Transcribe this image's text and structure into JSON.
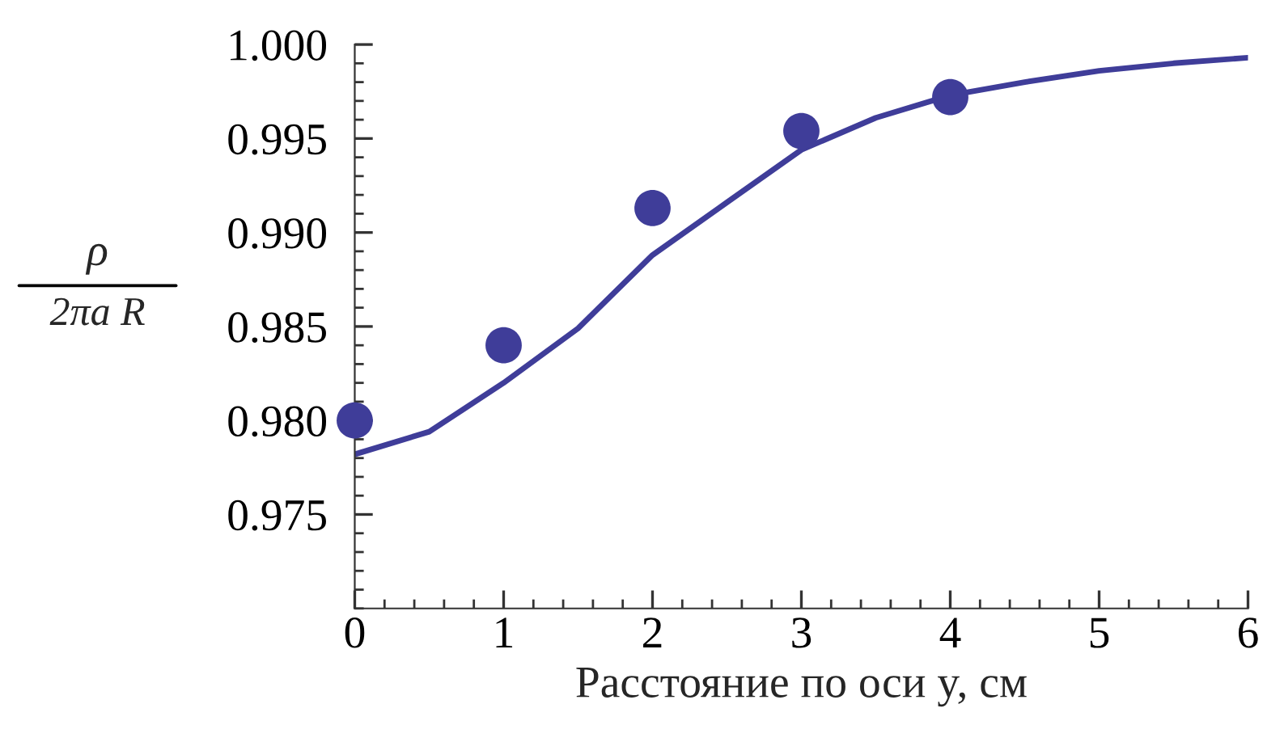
{
  "chart_data": {
    "type": "scatter",
    "xlabel": "Расстояние по оси y, см",
    "ylabel": "ρ\n2πa R",
    "series": [
      {
        "color": "#3f3d99",
        "marker": "circle",
        "x": [
          0,
          1,
          2,
          3,
          4
        ],
        "values": [
          0.98,
          0.984,
          0.9913,
          0.9954,
          0.9972
        ]
      },
      {
        "type": "line",
        "color": "#3f3d99",
        "marker": "none",
        "line_style": "solid",
        "x": [
          0,
          0.5,
          1,
          1.5,
          2,
          2.5,
          3,
          3.5,
          4,
          4.5,
          5,
          5.5,
          6
        ],
        "values": [
          0.9782,
          0.9794,
          0.982,
          0.9849,
          0.9888,
          0.9916,
          0.9944,
          0.9961,
          0.9973,
          0.998,
          0.9986,
          0.999,
          0.9993
        ]
      }
    ],
    "xlim": [
      0,
      6
    ],
    "xticks": [
      0,
      1,
      2,
      3,
      4,
      5,
      6
    ],
    "ylim": [
      0.97,
      1.0
    ],
    "yticks": [
      0.975,
      {
        "value": 0.98,
        "label": "0.980"
      },
      0.985,
      {
        "value": 0.99,
        "label": "0.990"
      },
      0.995,
      {
        "value": 1.0,
        "label": "1.000"
      }
    ],
    "grid": false,
    "legend": false
  }
}
